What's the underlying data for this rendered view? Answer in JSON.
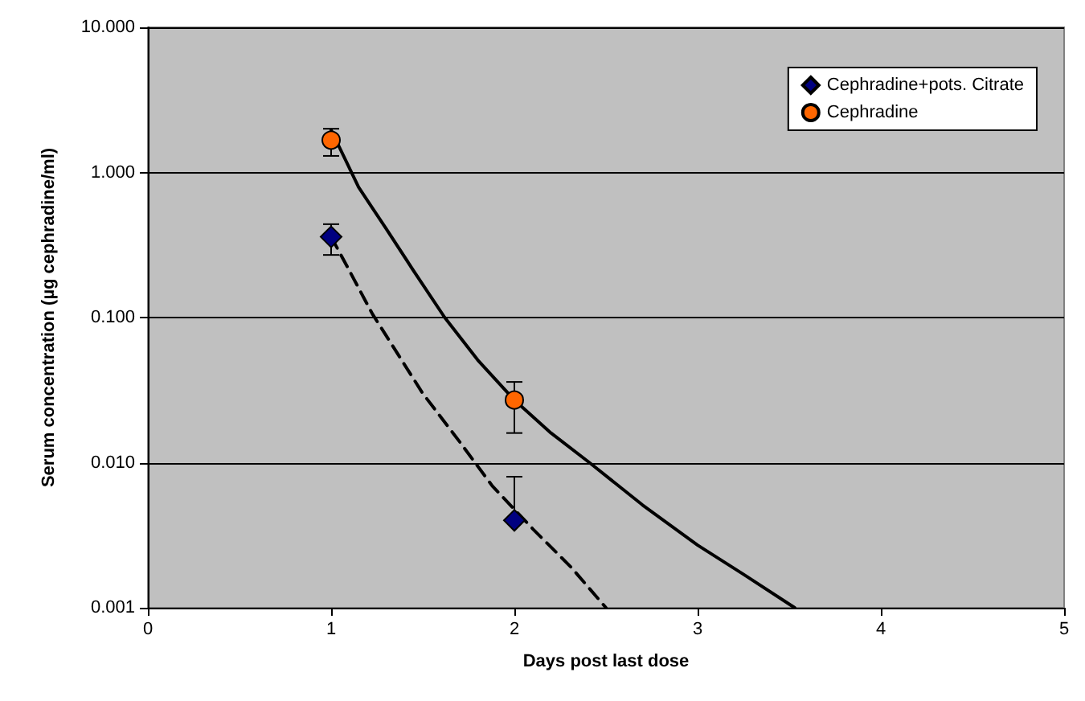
{
  "chart_data": {
    "type": "scatter",
    "xlabel": "Days post last dose",
    "ylabel": "Serum concentration (µg cephradine/ml)",
    "xlim": [
      0,
      5
    ],
    "xticks": [
      0,
      1,
      2,
      3,
      4,
      5
    ],
    "ylim": [
      0.001,
      10
    ],
    "yticks": [
      {
        "value": 0.001,
        "label": "0.001"
      },
      {
        "value": 0.01,
        "label": "0.010"
      },
      {
        "value": 0.1,
        "label": "0.100"
      },
      {
        "value": 1,
        "label": "1.000"
      },
      {
        "value": 10,
        "label": "10.000"
      }
    ],
    "log": "y",
    "grid": "y",
    "legend": "top right",
    "series": [
      {
        "name": "Cephradine+pots. Citrate",
        "marker": "diamond",
        "color": "#000080",
        "x": [
          1,
          2
        ],
        "values": [
          0.36,
          0.004
        ],
        "errors": [
          [
            0.27,
            0.44
          ],
          [
            0.004,
            0.008
          ]
        ]
      },
      {
        "name": "Cephradine",
        "marker": "circle",
        "color": "#ff6600",
        "x": [
          1,
          2
        ],
        "values": [
          1.67,
          0.027
        ],
        "errors": [
          [
            1.3,
            2.0
          ],
          [
            0.016,
            0.036
          ]
        ]
      },
      {
        "type": "line",
        "marker": "none",
        "line_style": "dashed",
        "color": "#000000",
        "x": [
          1,
          1.1,
          1.225,
          1.5,
          1.7,
          1.88,
          2.1,
          2.31,
          2.5
        ],
        "values": [
          0.36,
          0.21,
          0.106,
          0.03,
          0.014,
          0.0069,
          0.0035,
          0.0019,
          0.001
        ]
      },
      {
        "type": "line",
        "marker": "none",
        "line_style": "solid",
        "color": "#000000",
        "x": [
          1,
          1.15,
          1.3,
          1.45,
          1.62,
          1.8,
          2,
          2.2,
          2.41,
          2.7,
          3,
          3.25,
          3.53
        ],
        "values": [
          1.96,
          0.79,
          0.41,
          0.21,
          0.1,
          0.051,
          0.027,
          0.016,
          0.01,
          0.0051,
          0.0027,
          0.0017,
          0.001
        ]
      }
    ]
  }
}
